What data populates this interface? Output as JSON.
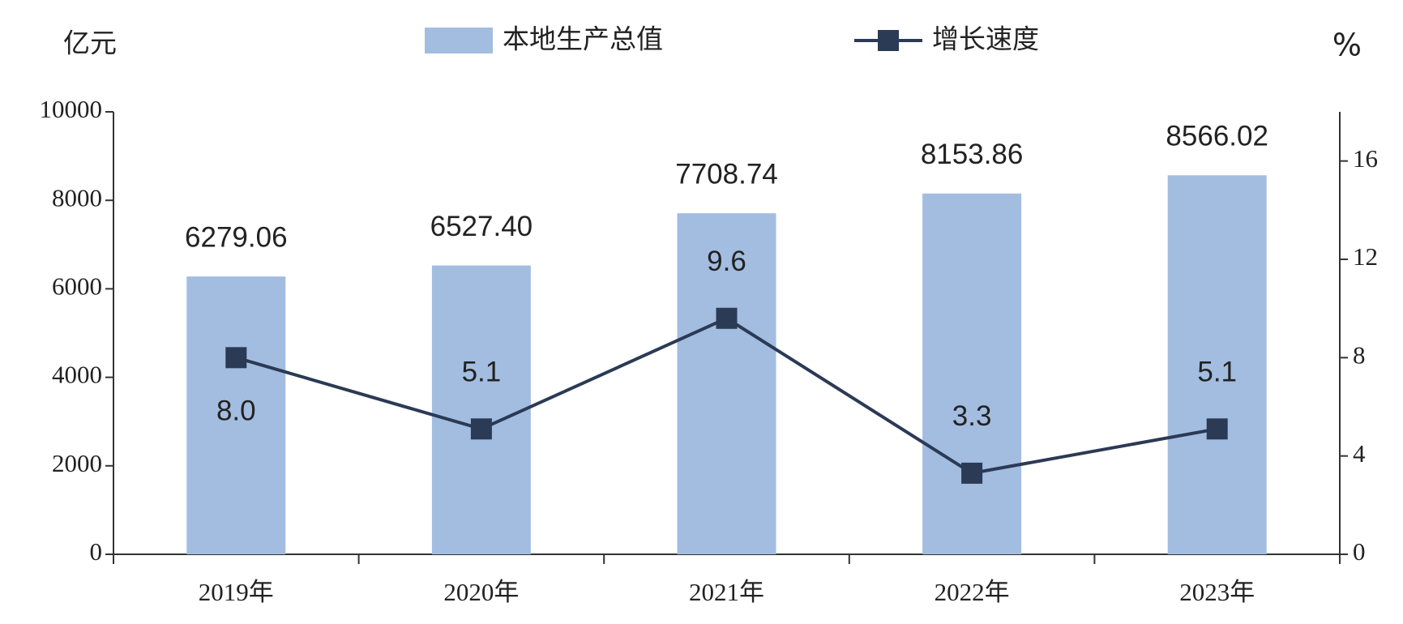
{
  "chart_data": {
    "type": "bar",
    "y_label": "亿元",
    "y2_label": "%",
    "categories": [
      "2019年",
      "2020年",
      "2021年",
      "2022年",
      "2023年"
    ],
    "series": [
      {
        "name": "本地生产总值",
        "type": "bar",
        "color": "#a3bde0",
        "values": [
          6279.06,
          6527.4,
          7708.74,
          8153.86,
          8566.02
        ],
        "value_labels": [
          "6279.06",
          "6527.40",
          "7708.74",
          "8153.86",
          "8566.02"
        ]
      },
      {
        "name": "增长速度",
        "type": "line",
        "axis": "y2",
        "color": "#2b3a55",
        "values": [
          8.0,
          5.1,
          9.6,
          3.3,
          5.1
        ],
        "value_labels": [
          "8.0",
          "5.1",
          "9.6",
          "3.3",
          "5.1"
        ]
      }
    ],
    "ylim": [
      0,
      10000
    ],
    "yticks": [
      0,
      2000,
      4000,
      6000,
      8000,
      10000
    ],
    "y2lim": [
      0,
      18
    ],
    "y2ticks": [
      0,
      4,
      8,
      12,
      16
    ],
    "grid": false,
    "legend": "top"
  }
}
